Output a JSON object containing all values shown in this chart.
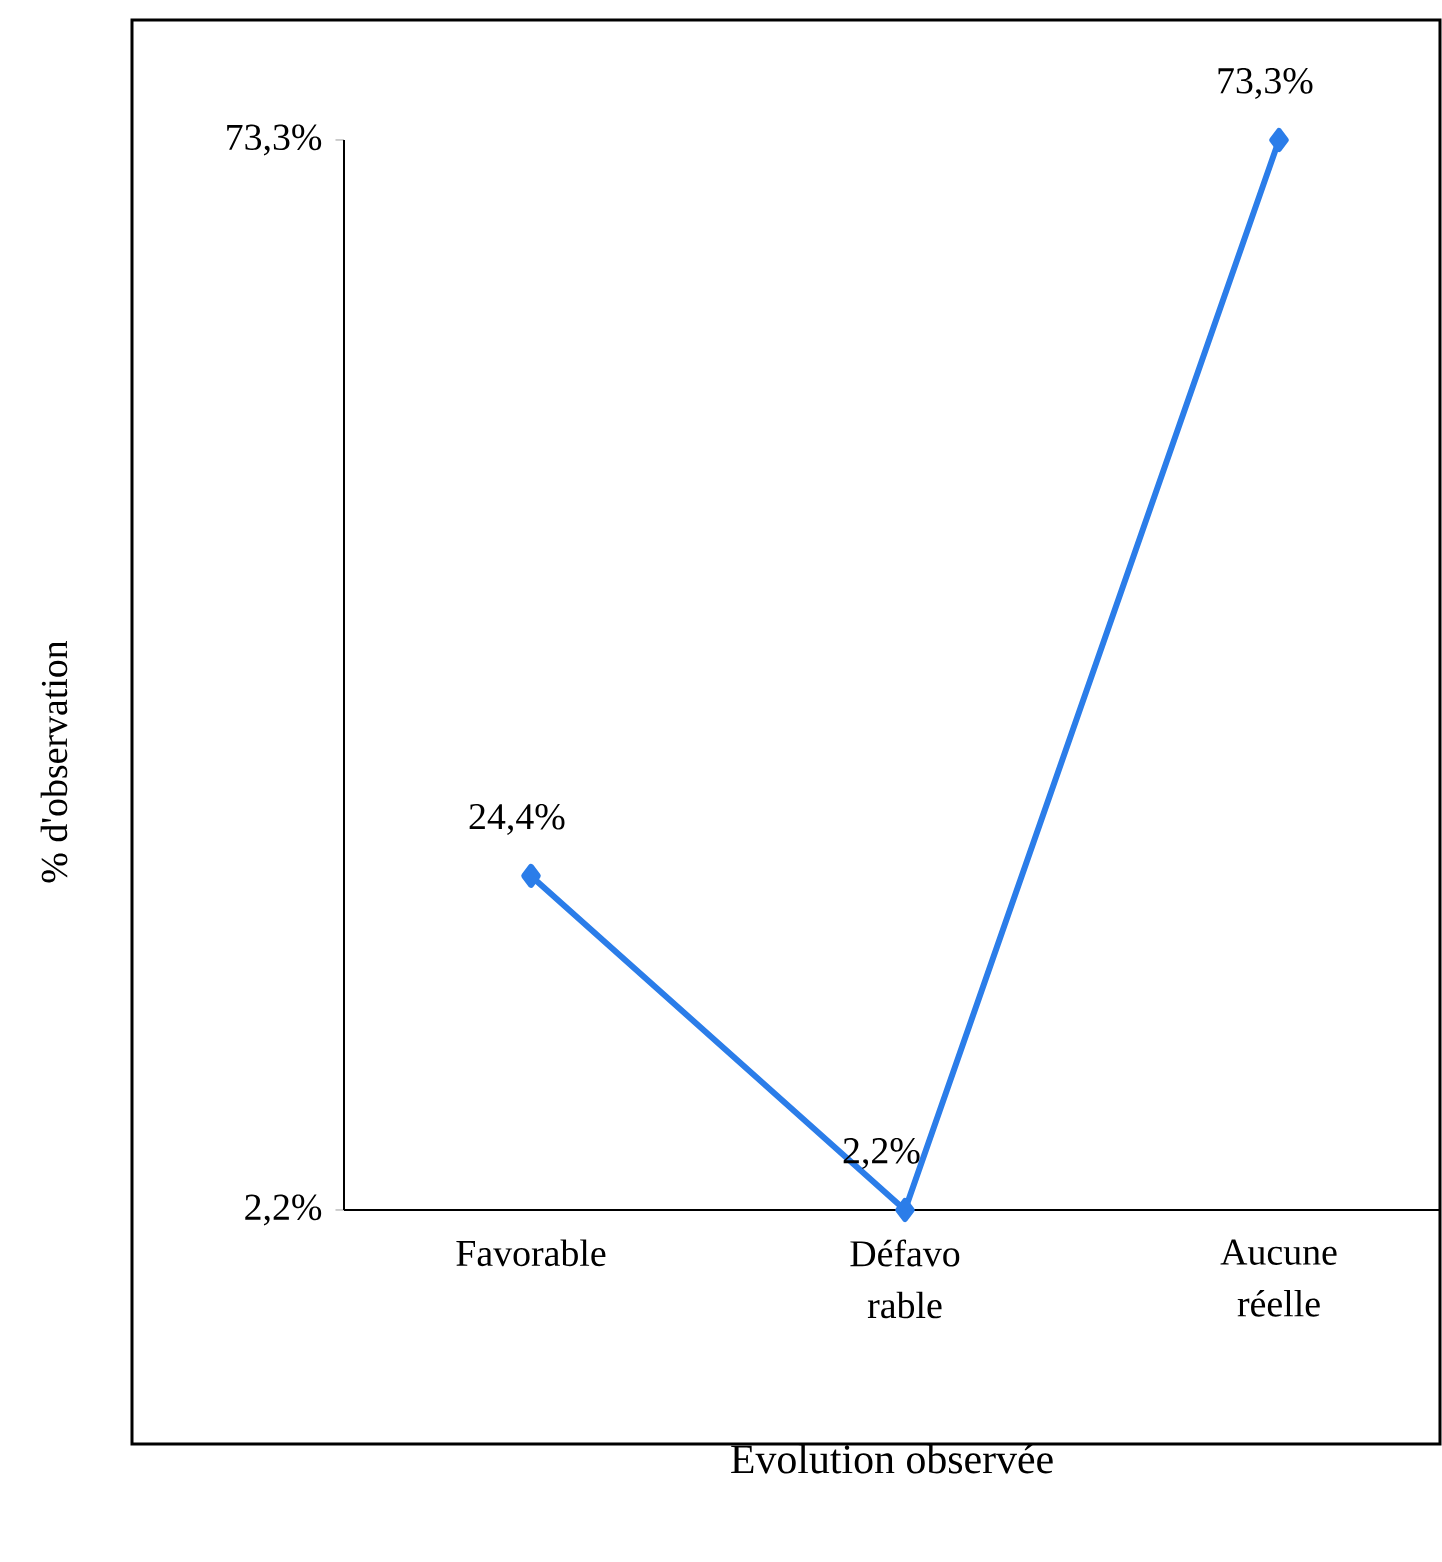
{
  "chart_data": {
    "type": "line",
    "xlabel": "Evolution observée",
    "ylabel": "% d'observation",
    "categories": [
      "Favorable",
      "Défavo rable",
      "Aucune réelle"
    ],
    "series": [
      {
        "color": "#2b7de9",
        "values": [
          24.4,
          2.2,
          73.3
        ],
        "value_labels": [
          "24,4%",
          "2,2%",
          "73,3%"
        ]
      }
    ],
    "ylim": [
      2.2,
      73.3
    ],
    "yticks": [
      {
        "value": 2.2,
        "label": "2,2%"
      },
      {
        "value": 73.3,
        "label": "73,3%"
      }
    ],
    "marker": "diamond",
    "line_style": "solid"
  }
}
